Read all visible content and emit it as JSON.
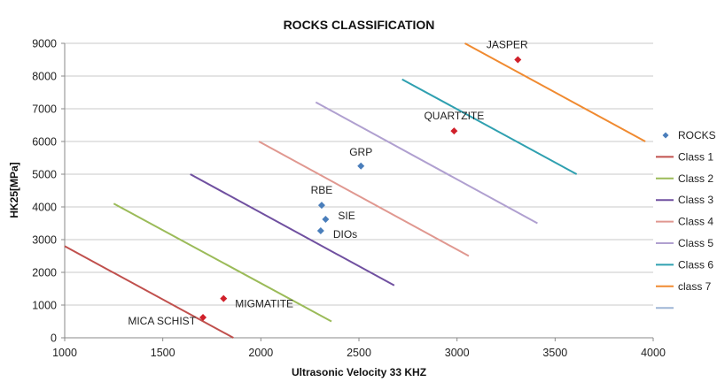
{
  "chart_data": {
    "type": "scatter",
    "title": "ROCKS CLASSIFICATION",
    "xlabel": "Ultrasonic Velocity 33 KHZ",
    "ylabel": "HK25[MPa]",
    "xlim": [
      1000,
      4000
    ],
    "ylim": [
      0,
      9000
    ],
    "x_ticks": [
      "1000",
      "1500",
      "2000",
      "2500",
      "3000",
      "3500",
      "4000"
    ],
    "y_ticks": [
      "0",
      "1000",
      "2000",
      "3000",
      "4000",
      "5000",
      "6000",
      "7000",
      "8000",
      "9000"
    ],
    "grid": "horizontal",
    "legend": "right",
    "points": [
      {
        "label": "JASPER",
        "x": 3310,
        "y": 8500,
        "color": "#d0202a"
      },
      {
        "label": "QUARTZITE",
        "x": 2985,
        "y": 6320,
        "color": "#d0202a"
      },
      {
        "label": "GRP",
        "x": 2510,
        "y": 5250,
        "color": "#4a7ebb"
      },
      {
        "label": "RBE",
        "x": 2310,
        "y": 4050,
        "color": "#4a7ebb"
      },
      {
        "label": "SIE",
        "x": 2330,
        "y": 3620,
        "color": "#4a7ebb"
      },
      {
        "label": "DIOs",
        "x": 2305,
        "y": 3270,
        "color": "#4a7ebb"
      },
      {
        "label": "MIGMATITE",
        "x": 1810,
        "y": 1200,
        "color": "#d0202a"
      },
      {
        "label": "MICA SCHIST",
        "x": 1705,
        "y": 620,
        "color": "#d0202a"
      }
    ],
    "series": [
      {
        "name": "Class 1",
        "color": "#c0504d",
        "x": [
          1000,
          1860
        ],
        "y": [
          2800,
          0
        ]
      },
      {
        "name": "Class 2",
        "color": "#9bbb59",
        "x": [
          1250,
          2360
        ],
        "y": [
          4100,
          500
        ]
      },
      {
        "name": "Class 3",
        "color": "#7050a0",
        "x": [
          1640,
          2680
        ],
        "y": [
          5000,
          1600
        ]
      },
      {
        "name": "Class 4",
        "color": "#e09890",
        "x": [
          1990,
          3060
        ],
        "y": [
          6000,
          2500
        ]
      },
      {
        "name": "Class 5",
        "color": "#b0a0d0",
        "x": [
          2280,
          3410
        ],
        "y": [
          7200,
          3500
        ]
      },
      {
        "name": "Class 6",
        "color": "#2fa0b0",
        "x": [
          2720,
          3610
        ],
        "y": [
          7900,
          5000
        ]
      },
      {
        "name": "class 7",
        "color": "#f08a30",
        "x": [
          3040,
          3960
        ],
        "y": [
          9000,
          6000
        ]
      }
    ],
    "legend_entries": [
      {
        "name": "ROCKS",
        "kind": "marker",
        "color": "#4a7ebb"
      },
      {
        "name": "Class 1",
        "kind": "line",
        "color": "#c0504d"
      },
      {
        "name": "Class 2",
        "kind": "line",
        "color": "#9bbb59"
      },
      {
        "name": "Class 3",
        "kind": "line",
        "color": "#7050a0"
      },
      {
        "name": "Class 4",
        "kind": "line",
        "color": "#e09890"
      },
      {
        "name": "Class 5",
        "kind": "line",
        "color": "#b0a0d0"
      },
      {
        "name": "Class 6",
        "kind": "line",
        "color": "#2fa0b0"
      },
      {
        "name": "class 7",
        "kind": "line",
        "color": "#f08a30"
      },
      {
        "name": "",
        "kind": "line",
        "color": "#9fb6d6"
      }
    ]
  }
}
